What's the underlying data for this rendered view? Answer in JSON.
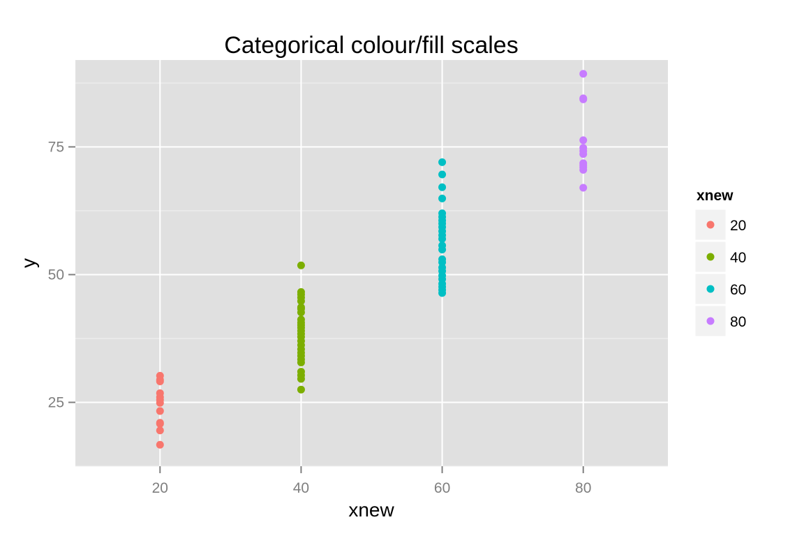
{
  "chart_data": {
    "type": "scatter",
    "title": "Categorical colour/fill scales",
    "xlabel": "xnew",
    "ylabel": "y",
    "xlim": [
      8,
      92
    ],
    "ylim": [
      12.5,
      92
    ],
    "x_ticks": [
      20,
      40,
      60,
      80
    ],
    "y_ticks": [
      25,
      50,
      75
    ],
    "grid": true,
    "panel_background": "#e0e0e0",
    "legend": {
      "title": "xnew",
      "position": "right",
      "entries": [
        "20",
        "40",
        "60",
        "80"
      ]
    },
    "series": [
      {
        "name": "20",
        "color": "#F8766D",
        "x": 20,
        "y": [
          30.2,
          29.4,
          29.1,
          26.8,
          26.0,
          25.5,
          24.9,
          23.3,
          21.0,
          20.8,
          19.5,
          16.7
        ]
      },
      {
        "name": "40",
        "color": "#7CAE00",
        "x": 40,
        "y": [
          51.8,
          46.6,
          46.1,
          45.5,
          44.8,
          43.6,
          43.3,
          42.6,
          41.2,
          40.6,
          40.1,
          39.6,
          39.0,
          38.4,
          37.8,
          37.0,
          36.2,
          35.4,
          34.7,
          34.1,
          33.4,
          32.8,
          31.0,
          30.3,
          29.6,
          27.5
        ]
      },
      {
        "name": "60",
        "color": "#00BFC4",
        "x": 60,
        "y": [
          72.0,
          69.6,
          67.1,
          64.9,
          62.0,
          61.3,
          60.6,
          60.0,
          59.3,
          58.5,
          57.7,
          57.0,
          55.7,
          54.9,
          53.0,
          52.4,
          51.4,
          50.7,
          49.8,
          49.1,
          48.2,
          47.6,
          47.0,
          46.4
        ]
      },
      {
        "name": "80",
        "color": "#C77CFF",
        "x": 80,
        "y": [
          89.3,
          84.5,
          84.3,
          76.3,
          74.8,
          74.2,
          73.6,
          71.8,
          71.4,
          71.0,
          70.5,
          67.0
        ]
      }
    ]
  }
}
